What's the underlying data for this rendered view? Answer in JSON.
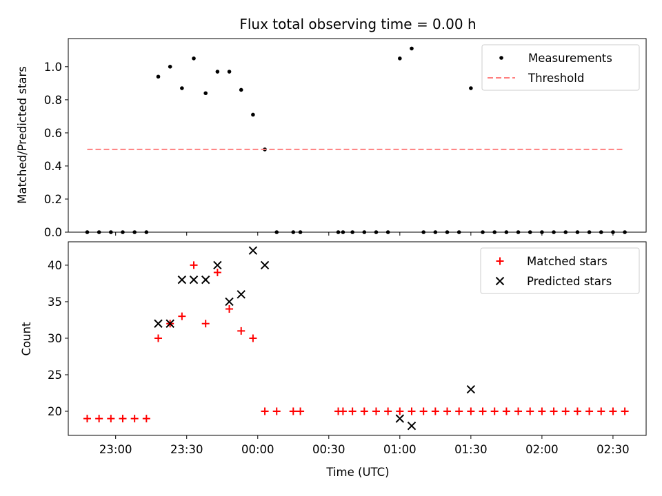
{
  "chart_data": [
    {
      "type": "scatter",
      "title": "Flux total observing time = 0.00 h",
      "xlabel": "",
      "ylabel": "Matched/Predicted stars",
      "xlim": [
        "22:40",
        "02:44"
      ],
      "ylim": [
        0,
        1.17
      ],
      "yticks": [
        "0.0",
        "0.2",
        "0.4",
        "0.6",
        "0.8",
        "1.0"
      ],
      "grid": false,
      "legend": "top-right",
      "series": [
        {
          "name": "Measurements",
          "marker": "dot",
          "color": "#000000",
          "points": [
            [
              "22:48",
              0
            ],
            [
              "22:53",
              0
            ],
            [
              "22:58",
              0
            ],
            [
              "23:03",
              0
            ],
            [
              "23:08",
              0
            ],
            [
              "23:13",
              0
            ],
            [
              "23:18",
              0.94
            ],
            [
              "23:23",
              1.0
            ],
            [
              "23:28",
              0.87
            ],
            [
              "23:33",
              1.05
            ],
            [
              "23:38",
              0.84
            ],
            [
              "23:43",
              0.97
            ],
            [
              "23:48",
              0.97
            ],
            [
              "23:53",
              0.86
            ],
            [
              "23:58",
              0.71
            ],
            [
              "00:03",
              0.5
            ],
            [
              "00:08",
              0
            ],
            [
              "00:15",
              0
            ],
            [
              "00:18",
              0
            ],
            [
              "00:34",
              0
            ],
            [
              "00:36",
              0
            ],
            [
              "00:40",
              0
            ],
            [
              "00:45",
              0
            ],
            [
              "00:50",
              0
            ],
            [
              "00:55",
              0
            ],
            [
              "01:00",
              1.05
            ],
            [
              "01:05",
              1.11
            ],
            [
              "01:10",
              0
            ],
            [
              "01:15",
              0
            ],
            [
              "01:20",
              0
            ],
            [
              "01:25",
              0
            ],
            [
              "01:30",
              0.87
            ],
            [
              "01:35",
              0
            ],
            [
              "01:40",
              0
            ],
            [
              "01:45",
              0
            ],
            [
              "01:50",
              0
            ],
            [
              "01:55",
              0
            ],
            [
              "02:00",
              0
            ],
            [
              "02:05",
              0
            ],
            [
              "02:10",
              0
            ],
            [
              "02:15",
              0
            ],
            [
              "02:20",
              0
            ],
            [
              "02:25",
              0
            ],
            [
              "02:30",
              0
            ],
            [
              "02:35",
              0
            ]
          ]
        },
        {
          "name": "Threshold",
          "type": "line",
          "style": "dashed",
          "color": "#ff7f7f",
          "points": [
            [
              "22:48",
              0.5
            ],
            [
              "02:35",
              0.5
            ]
          ]
        }
      ]
    },
    {
      "type": "scatter",
      "title": "",
      "xlabel": "Time (UTC)",
      "ylabel": "Count",
      "xlim": [
        "22:40",
        "02:44"
      ],
      "ylim": [
        16.7,
        43.2
      ],
      "xticks": [
        "23:00",
        "23:30",
        "00:00",
        "00:30",
        "01:00",
        "01:30",
        "02:00",
        "02:30"
      ],
      "yticks": [
        "20",
        "25",
        "30",
        "35",
        "40"
      ],
      "grid": false,
      "legend": "top-right",
      "series": [
        {
          "name": "Matched stars",
          "marker": "plus",
          "color": "#ff0000",
          "points": [
            [
              "22:48",
              19
            ],
            [
              "22:53",
              19
            ],
            [
              "22:58",
              19
            ],
            [
              "23:03",
              19
            ],
            [
              "23:08",
              19
            ],
            [
              "23:13",
              19
            ],
            [
              "23:18",
              30
            ],
            [
              "23:23",
              32
            ],
            [
              "23:28",
              33
            ],
            [
              "23:33",
              40
            ],
            [
              "23:38",
              32
            ],
            [
              "23:43",
              39
            ],
            [
              "23:48",
              34
            ],
            [
              "23:53",
              31
            ],
            [
              "23:58",
              30
            ],
            [
              "00:03",
              20
            ],
            [
              "00:08",
              20
            ],
            [
              "00:15",
              20
            ],
            [
              "00:18",
              20
            ],
            [
              "00:34",
              20
            ],
            [
              "00:36",
              20
            ],
            [
              "00:40",
              20
            ],
            [
              "00:45",
              20
            ],
            [
              "00:50",
              20
            ],
            [
              "00:55",
              20
            ],
            [
              "01:00",
              20
            ],
            [
              "01:05",
              20
            ],
            [
              "01:10",
              20
            ],
            [
              "01:15",
              20
            ],
            [
              "01:20",
              20
            ],
            [
              "01:25",
              20
            ],
            [
              "01:30",
              20
            ],
            [
              "01:35",
              20
            ],
            [
              "01:40",
              20
            ],
            [
              "01:45",
              20
            ],
            [
              "01:50",
              20
            ],
            [
              "01:55",
              20
            ],
            [
              "02:00",
              20
            ],
            [
              "02:05",
              20
            ],
            [
              "02:10",
              20
            ],
            [
              "02:15",
              20
            ],
            [
              "02:20",
              20
            ],
            [
              "02:25",
              20
            ],
            [
              "02:30",
              20
            ],
            [
              "02:35",
              20
            ]
          ]
        },
        {
          "name": "Predicted stars",
          "marker": "x",
          "color": "#000000",
          "points": [
            [
              "23:18",
              32
            ],
            [
              "23:23",
              32
            ],
            [
              "23:28",
              38
            ],
            [
              "23:33",
              38
            ],
            [
              "23:38",
              38
            ],
            [
              "23:43",
              40
            ],
            [
              "23:48",
              35
            ],
            [
              "23:53",
              36
            ],
            [
              "23:58",
              42
            ],
            [
              "00:03",
              40
            ],
            [
              "01:00",
              19
            ],
            [
              "01:05",
              18
            ],
            [
              "01:30",
              23
            ]
          ]
        }
      ]
    }
  ]
}
